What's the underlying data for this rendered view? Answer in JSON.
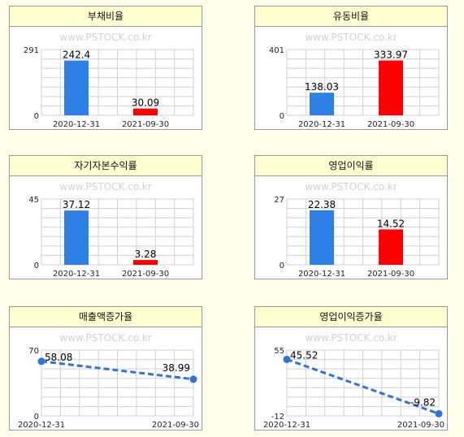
{
  "watermark": "www.PSTOCK.co.kr",
  "colors": {
    "blue": "#2f80e6",
    "red": "#ff0000",
    "line": "#2f73d8",
    "grid": "#d0d0d0",
    "title_bg": "#fefed0"
  },
  "chart_data": [
    {
      "type": "bar",
      "title": "부채비율",
      "categories": [
        "2020-12-31",
        "2021-09-30"
      ],
      "values": [
        242.4,
        30.09
      ],
      "value_labels": [
        "242.4",
        "30.09"
      ],
      "ylim": [
        0,
        291
      ],
      "ylim_labels": [
        "0",
        "291"
      ],
      "bar_colors": [
        "#2f80e6",
        "#ff0000"
      ],
      "grid": true
    },
    {
      "type": "bar",
      "title": "유동비율",
      "categories": [
        "2020-12-31",
        "2021-09-30"
      ],
      "values": [
        138.03,
        333.97
      ],
      "value_labels": [
        "138.03",
        "333.97"
      ],
      "ylim": [
        0,
        401
      ],
      "ylim_labels": [
        "0",
        "401"
      ],
      "bar_colors": [
        "#2f80e6",
        "#ff0000"
      ],
      "grid": true
    },
    {
      "type": "bar",
      "title": "자기자본수익률",
      "categories": [
        "2020-12-31",
        "2021-09-30"
      ],
      "values": [
        37.12,
        3.28
      ],
      "value_labels": [
        "37.12",
        "3.28"
      ],
      "ylim": [
        0,
        45
      ],
      "ylim_labels": [
        "0",
        "45"
      ],
      "bar_colors": [
        "#2f80e6",
        "#ff0000"
      ],
      "grid": true
    },
    {
      "type": "bar",
      "title": "영업이익률",
      "categories": [
        "2020-12-31",
        "2021-09-30"
      ],
      "values": [
        22.38,
        14.52
      ],
      "value_labels": [
        "22.38",
        "14.52"
      ],
      "ylim": [
        0,
        27
      ],
      "ylim_labels": [
        "0",
        "27"
      ],
      "bar_colors": [
        "#2f80e6",
        "#ff0000"
      ],
      "grid": true
    },
    {
      "type": "line",
      "title": "매출액증가율",
      "categories": [
        "2020-12-31",
        "2021-09-30"
      ],
      "values": [
        58.08,
        38.99
      ],
      "value_labels": [
        "58.08",
        "38.99"
      ],
      "ylim": [
        0,
        70
      ],
      "ylim_labels": [
        "0",
        "70"
      ],
      "line_style": "dashed",
      "grid": true
    },
    {
      "type": "line",
      "title": "영업이익증가율",
      "categories": [
        "2020-12-31",
        "2021-09-30"
      ],
      "values": [
        45.52,
        -9.82
      ],
      "value_labels": [
        "45.52",
        "-9.82"
      ],
      "ylim": [
        -12,
        55
      ],
      "ylim_labels": [
        "-12",
        "55"
      ],
      "line_style": "dashed",
      "grid": true
    }
  ]
}
